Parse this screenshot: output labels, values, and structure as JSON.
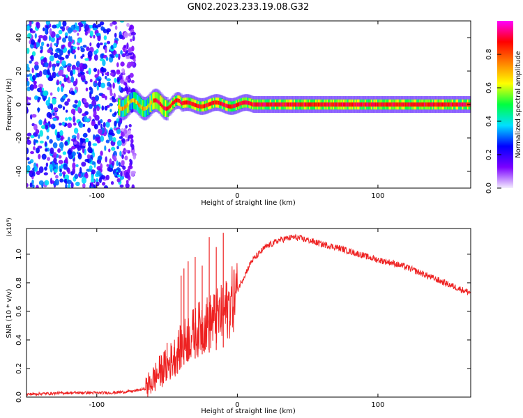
{
  "title": "GN02.2023.233.19.08.G32",
  "chart_data": [
    {
      "type": "heatmap",
      "xlabel": "Height of straight line (km)",
      "ylabel": "Frequency (Hz)",
      "xlim": [
        -150,
        166
      ],
      "ylim": [
        -50,
        50
      ],
      "xticks": [
        -100,
        0,
        100
      ],
      "yticks": [
        -40,
        -20,
        0,
        20,
        40
      ],
      "colorbar": {
        "label": "Normalized spectral amplitude",
        "range": [
          0,
          1
        ],
        "ticks": [
          "0.0",
          "0.2",
          "0.4",
          "0.6",
          "0.8"
        ],
        "colors": [
          "#f4eefe",
          "#7b00ff",
          "#0000ff",
          "#00e0ff",
          "#00ff40",
          "#ffff00",
          "#ff8000",
          "#ff0000",
          "#ff00ff"
        ]
      },
      "features": {
        "noise_region_x": [
          -150,
          -73
        ],
        "noise_level": "0.2-0.4",
        "signal_start_x": -85,
        "signal_center_freq": 0,
        "signal_peak_amplitude": 0.9
      }
    },
    {
      "type": "line",
      "xlabel": "Height of straight line (km)",
      "ylabel": "SNR (10 * v/v)",
      "scale_label": "(x10⁴)",
      "xlim": [
        -150,
        166
      ],
      "ylim": [
        0,
        1.18
      ],
      "xticks": [
        -100,
        0,
        100
      ],
      "yticks": [
        "0.0",
        "0.2",
        "0.4",
        "0.6",
        "0.8",
        "1.0"
      ],
      "line_color": "#ee2222",
      "series": [
        {
          "x": [
            -150,
            -120,
            -90,
            -75,
            -65,
            -60,
            -55,
            -50,
            -45,
            -40,
            -35,
            -30,
            -25,
            -20,
            -15,
            -10,
            -5,
            0,
            5,
            10,
            20,
            30,
            40,
            50,
            60,
            70,
            80,
            90,
            100,
            110,
            120,
            130,
            140,
            150,
            160,
            166
          ],
          "y": [
            0.02,
            0.03,
            0.03,
            0.04,
            0.06,
            0.12,
            0.18,
            0.22,
            0.28,
            0.35,
            0.42,
            0.45,
            0.5,
            0.52,
            0.55,
            0.58,
            0.65,
            0.75,
            0.85,
            0.95,
            1.05,
            1.1,
            1.12,
            1.1,
            1.07,
            1.05,
            1.02,
            0.99,
            0.96,
            0.94,
            0.91,
            0.87,
            0.83,
            0.79,
            0.75,
            0.73
          ],
          "spikes": [
            {
              "x": -50,
              "y": 0.38
            },
            {
              "x": -45,
              "y": 0.35
            },
            {
              "x": -40,
              "y": 0.85
            },
            {
              "x": -38,
              "y": 0.9
            },
            {
              "x": -35,
              "y": 0.95
            },
            {
              "x": -30,
              "y": 0.98
            },
            {
              "x": -25,
              "y": 0.92
            },
            {
              "x": -20,
              "y": 1.12
            },
            {
              "x": -15,
              "y": 1.05
            },
            {
              "x": -10,
              "y": 1.15
            }
          ]
        }
      ]
    }
  ]
}
